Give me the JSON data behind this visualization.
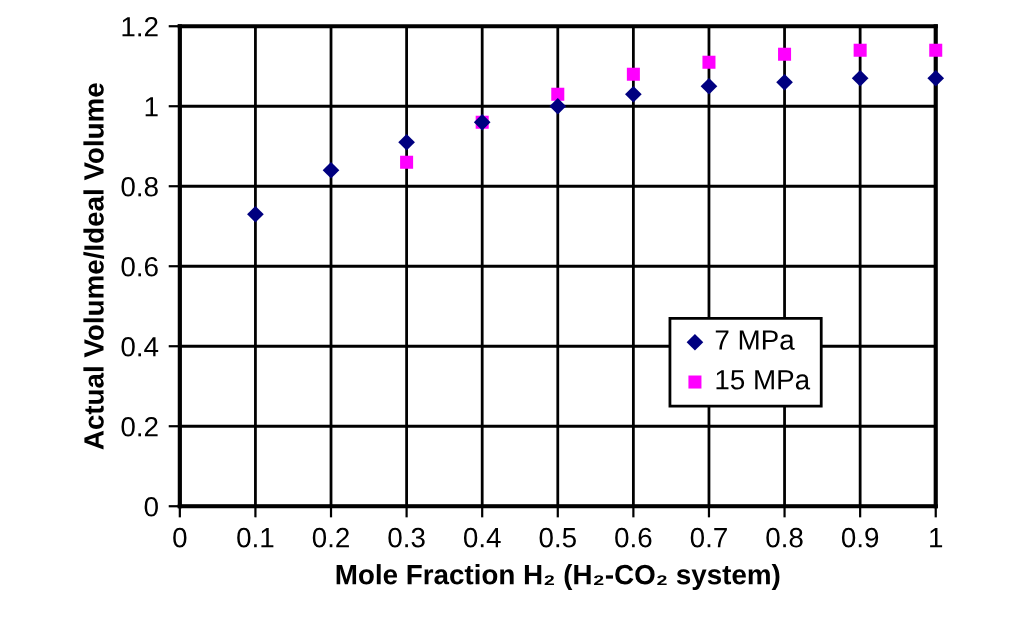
{
  "chart_data": {
    "type": "scatter",
    "xlabel": "Mole Fraction H₂ (H₂-CO₂ system)",
    "ylabel": "Actual Volume/Ideal Volume",
    "x": [
      0.1,
      0.2,
      0.3,
      0.4,
      0.5,
      0.6,
      0.7,
      0.8,
      0.9,
      1
    ],
    "series": [
      {
        "name": "7 MPa",
        "color": "#000080",
        "marker": "diamond",
        "values": [
          0.73,
          0.84,
          0.91,
          0.96,
          1.0,
          1.03,
          1.05,
          1.06,
          1.07,
          1.07
        ]
      },
      {
        "name": "15 MPa",
        "color": "#ff00ff",
        "marker": "square",
        "values": [
          null,
          null,
          0.86,
          0.96,
          1.03,
          1.08,
          1.11,
          1.13,
          1.14,
          1.14
        ]
      }
    ],
    "xlim": [
      0,
      1
    ],
    "xticks": [
      0,
      0.1,
      0.2,
      0.3,
      0.4,
      0.5,
      0.6,
      0.7,
      0.8,
      0.9,
      1
    ],
    "ylim": [
      0,
      1.2
    ],
    "yticks": [
      0,
      0.2,
      0.4,
      0.6,
      0.8,
      1,
      1.2
    ],
    "grid": true,
    "legend": "right"
  }
}
